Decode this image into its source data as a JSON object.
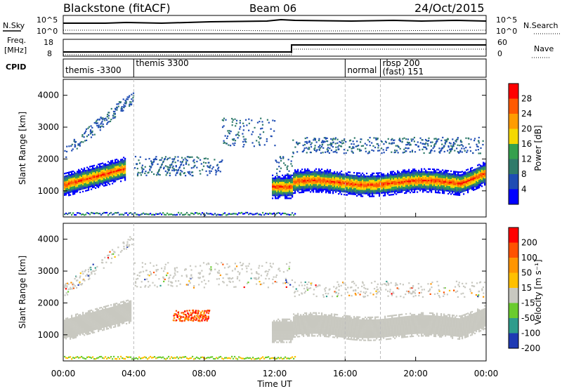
{
  "header": {
    "station": "Blackstone (fitACF)",
    "beam": "Beam 06",
    "date": "24/Oct/2015"
  },
  "noise_panel": {
    "left_label": "N.Sky",
    "right_label": "N.Search",
    "y_ticks_left": [
      "10^5",
      "10^0"
    ],
    "y_ticks_right": [
      "10^5",
      "10^0"
    ]
  },
  "freq_panel": {
    "left_label_1": "Freq.",
    "left_label_2": "[MHz]",
    "right_label": "Nave",
    "y_ticks_left": [
      "18",
      "8"
    ],
    "y_ticks_right": [
      "60",
      "0"
    ]
  },
  "cpid_panel": {
    "label": "CPID",
    "segments": [
      {
        "start_hour": 0.0,
        "text": "themis -3300"
      },
      {
        "start_hour": 4.0,
        "text": "themis 3300"
      },
      {
        "start_hour": 16.0,
        "text": "normal"
      },
      {
        "start_hour": 18.0,
        "text": "rbsp 200"
      },
      {
        "start_hour": 18.0,
        "text": "(fast) 151"
      }
    ]
  },
  "colors": {
    "power_scale": [
      "#0000ff",
      "#1f4db3",
      "#2f7a6a",
      "#35a04e",
      "#f5d800",
      "#ff9c00",
      "#ff5a00",
      "#ff0000"
    ],
    "velocity_scale": [
      "#ff0000",
      "#ff5200",
      "#ff9500",
      "#ffc000",
      "#c8c8c0",
      "#6acc2e",
      "#2e9c8c",
      "#1f3ab3"
    ],
    "ground_scatter": "#c8c8c0"
  },
  "chart_data": [
    {
      "type": "heatmap",
      "name": "Power",
      "xlabel": "Time UT",
      "ylabel": "Slant Range [km]",
      "xlim_hours": [
        0,
        24
      ],
      "ylim_km": [
        180,
        4500
      ],
      "y_ticks": [
        "1000",
        "2000",
        "3000",
        "4000"
      ],
      "colorbar_label": "Power [dB]",
      "colorbar_ticks": [
        "4",
        "8",
        "12",
        "16",
        "20",
        "24",
        "28"
      ],
      "x_ticks": [
        "00:00",
        "04:00",
        "08:00",
        "12:00",
        "16:00",
        "20:00",
        "00:00"
      ]
    },
    {
      "type": "heatmap",
      "name": "Velocity",
      "xlabel": "Time UT",
      "ylabel": "Slant Range [km]",
      "xlim_hours": [
        0,
        24
      ],
      "ylim_km": [
        180,
        4500
      ],
      "y_ticks": [
        "1000",
        "2000",
        "3000",
        "4000"
      ],
      "colorbar_label": "Velocity [m s⁻¹]",
      "colorbar_ticks": [
        "200",
        "100",
        "50",
        "15",
        "-15",
        "-50",
        "-100",
        "-200"
      ],
      "x_ticks": [
        "00:00",
        "04:00",
        "08:00",
        "12:00",
        "16:00",
        "20:00",
        "00:00"
      ]
    }
  ]
}
